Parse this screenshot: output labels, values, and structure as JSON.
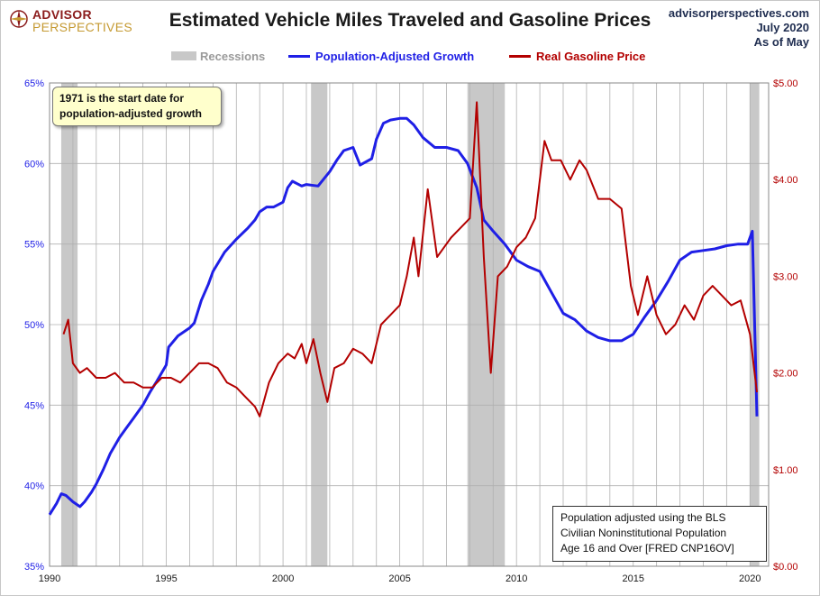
{
  "header": {
    "logo_line1": "ADVISOR",
    "logo_line2": "PERSPECTIVES",
    "title": "Estimated Vehicle Miles Traveled and Gasoline Prices",
    "source_site": "advisorperspectives.com",
    "source_date": "July 2020",
    "source_asof": "As of May"
  },
  "legend": {
    "recessions": "Recessions",
    "pop": "Population-Adjusted Growth",
    "gas": "Real Gasoline Price"
  },
  "annotations": {
    "note_line1": "1971  is the start date for",
    "note_line2": "population-adjusted growth",
    "source_line1": "Population adjusted using the BLS",
    "source_line2": "Civilian Noninstitutional Population",
    "source_line3": "Age 16 and Over  [FRED CNP16OV]"
  },
  "colors": {
    "pop": "#1f1fe6",
    "gas": "#b30000",
    "recession": "#c8c8c8",
    "grid": "#b0b0b0"
  },
  "chart_data": {
    "type": "line",
    "title": "Estimated Vehicle Miles Traveled and Gasoline Prices",
    "xlim": [
      1990,
      2020.8
    ],
    "x_ticks": [
      1990,
      1995,
      2000,
      2005,
      2010,
      2015,
      2020
    ],
    "y_left": {
      "label": "",
      "ylim": [
        35,
        65
      ],
      "ticks": [
        35,
        40,
        45,
        50,
        55,
        60,
        65
      ],
      "tick_labels": [
        "35%",
        "40%",
        "45%",
        "50%",
        "55%",
        "60%",
        "65%"
      ]
    },
    "y_right": {
      "label": "",
      "ylim": [
        0,
        5
      ],
      "ticks": [
        0,
        1,
        2,
        3,
        4,
        5
      ],
      "tick_labels": [
        "$0.00",
        "$1.00",
        "$2.00",
        "$3.00",
        "$4.00",
        "$5.00"
      ]
    },
    "recessions": [
      [
        1990.5,
        1991.2
      ],
      [
        2001.2,
        2001.9
      ],
      [
        2007.9,
        2009.5
      ],
      [
        2020.0,
        2020.4
      ]
    ],
    "grid": true,
    "legend_position": "top",
    "series": [
      {
        "name": "Population-Adjusted Growth",
        "axis": "left",
        "x": [
          1990.0,
          1990.3,
          1990.5,
          1990.7,
          1991.0,
          1991.3,
          1991.5,
          1991.8,
          1992.0,
          1992.3,
          1992.6,
          1993.0,
          1993.3,
          1993.6,
          1994.0,
          1994.3,
          1994.6,
          1995.0,
          1995.1,
          1995.5,
          1996.0,
          1996.2,
          1996.5,
          1996.8,
          1997.0,
          1997.5,
          1998.0,
          1998.5,
          1998.8,
          1999.0,
          1999.3,
          1999.6,
          2000.0,
          2000.2,
          2000.4,
          2000.8,
          2001.0,
          2001.5,
          2002.0,
          2002.3,
          2002.6,
          2003.0,
          2003.3,
          2003.8,
          2004.0,
          2004.3,
          2004.6,
          2005.0,
          2005.3,
          2005.6,
          2006.0,
          2006.5,
          2007.0,
          2007.5,
          2007.9,
          2008.3,
          2008.6,
          2009.0,
          2009.5,
          2010.0,
          2010.5,
          2011.0,
          2011.5,
          2012.0,
          2012.5,
          2013.0,
          2013.5,
          2014.0,
          2014.5,
          2015.0,
          2015.5,
          2016.0,
          2016.5,
          2017.0,
          2017.5,
          2018.0,
          2018.5,
          2019.0,
          2019.5,
          2019.9,
          2020.1,
          2020.3
        ],
        "values": [
          38.2,
          38.9,
          39.5,
          39.4,
          39.0,
          38.7,
          39.0,
          39.6,
          40.1,
          41.0,
          42.0,
          43.0,
          43.6,
          44.2,
          45.0,
          45.8,
          46.5,
          47.5,
          48.6,
          49.3,
          49.8,
          50.1,
          51.5,
          52.5,
          53.3,
          54.5,
          55.3,
          56.0,
          56.5,
          57.0,
          57.3,
          57.3,
          57.6,
          58.5,
          58.9,
          58.6,
          58.7,
          58.6,
          59.5,
          60.2,
          60.8,
          61.0,
          59.9,
          60.3,
          61.5,
          62.5,
          62.7,
          62.8,
          62.8,
          62.4,
          61.6,
          61.0,
          61.0,
          60.8,
          60.0,
          58.5,
          56.5,
          55.8,
          55.0,
          54.0,
          53.6,
          53.3,
          52.0,
          50.7,
          50.3,
          49.6,
          49.2,
          49.0,
          49.0,
          49.4,
          50.5,
          51.5,
          52.7,
          54.0,
          54.5,
          54.6,
          54.7,
          54.9,
          55.0,
          55.0,
          55.8,
          44.3
        ]
      },
      {
        "name": "Real Gasoline Price",
        "axis": "right",
        "x": [
          1990.6,
          1990.8,
          1991.0,
          1991.3,
          1991.6,
          1992.0,
          1992.4,
          1992.8,
          1993.2,
          1993.6,
          1994.0,
          1994.4,
          1994.8,
          1995.2,
          1995.6,
          1996.0,
          1996.4,
          1996.8,
          1997.2,
          1997.6,
          1998.0,
          1998.4,
          1998.8,
          1999.0,
          1999.4,
          1999.8,
          2000.2,
          2000.5,
          2000.8,
          2001.0,
          2001.3,
          2001.6,
          2001.9,
          2002.2,
          2002.6,
          2003.0,
          2003.4,
          2003.8,
          2004.2,
          2004.6,
          2005.0,
          2005.3,
          2005.6,
          2005.8,
          2006.2,
          2006.6,
          2006.9,
          2007.2,
          2007.6,
          2008.0,
          2008.3,
          2008.6,
          2008.9,
          2009.2,
          2009.6,
          2010.0,
          2010.4,
          2010.8,
          2011.2,
          2011.5,
          2011.9,
          2012.3,
          2012.7,
          2013.0,
          2013.5,
          2014.0,
          2014.5,
          2014.9,
          2015.2,
          2015.6,
          2016.0,
          2016.4,
          2016.8,
          2017.2,
          2017.6,
          2018.0,
          2018.4,
          2018.8,
          2019.2,
          2019.6,
          2020.0,
          2020.3
        ],
        "values": [
          2.4,
          2.55,
          2.1,
          2.0,
          2.05,
          1.95,
          1.95,
          2.0,
          1.9,
          1.9,
          1.85,
          1.85,
          1.95,
          1.95,
          1.9,
          2.0,
          2.1,
          2.1,
          2.05,
          1.9,
          1.85,
          1.75,
          1.65,
          1.55,
          1.9,
          2.1,
          2.2,
          2.15,
          2.3,
          2.1,
          2.35,
          2.0,
          1.7,
          2.05,
          2.1,
          2.25,
          2.2,
          2.1,
          2.5,
          2.6,
          2.7,
          3.0,
          3.4,
          3.0,
          3.9,
          3.2,
          3.3,
          3.4,
          3.5,
          3.6,
          4.8,
          3.2,
          2.0,
          3.0,
          3.1,
          3.3,
          3.4,
          3.6,
          4.4,
          4.2,
          4.2,
          4.0,
          4.2,
          4.1,
          3.8,
          3.8,
          3.7,
          2.9,
          2.6,
          3.0,
          2.6,
          2.4,
          2.5,
          2.7,
          2.55,
          2.8,
          2.9,
          2.8,
          2.7,
          2.75,
          2.4,
          1.8
        ]
      }
    ]
  }
}
